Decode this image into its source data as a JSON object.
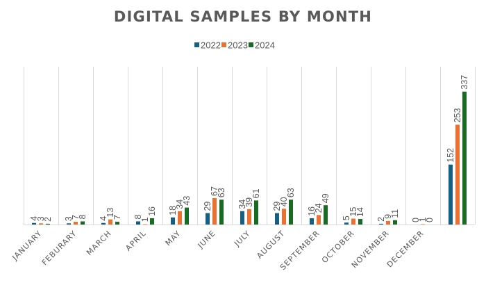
{
  "chart_data": {
    "type": "bar",
    "title": "DIGITAL SAMPLES BY MONTH",
    "xlabel": "",
    "ylabel": "",
    "ylim": [
      0,
      400
    ],
    "grid": "vertical category separators",
    "legend_position": "top-center",
    "categories": [
      "JANUARY",
      "FEBURARY",
      "MARCH",
      "APRIL",
      "MAY",
      "JUNE",
      "JULY",
      "AUGUST",
      "SEPTEMBER",
      "OCTOBER",
      "NOVEMBER",
      "DECEMBER",
      ""
    ],
    "series": [
      {
        "name": "2022",
        "color": "#156082",
        "values": [
          4,
          3,
          4,
          8,
          18,
          29,
          34,
          29,
          16,
          5,
          2,
          0,
          152
        ]
      },
      {
        "name": "2023",
        "color": "#E97132",
        "values": [
          3,
          7,
          13,
          1,
          34,
          67,
          39,
          40,
          24,
          15,
          9,
          1,
          253
        ]
      },
      {
        "name": "2024",
        "color": "#196B24",
        "values": [
          2,
          8,
          7,
          16,
          43,
          63,
          61,
          63,
          49,
          14,
          11,
          0,
          337
        ]
      }
    ],
    "data_labels": true
  }
}
